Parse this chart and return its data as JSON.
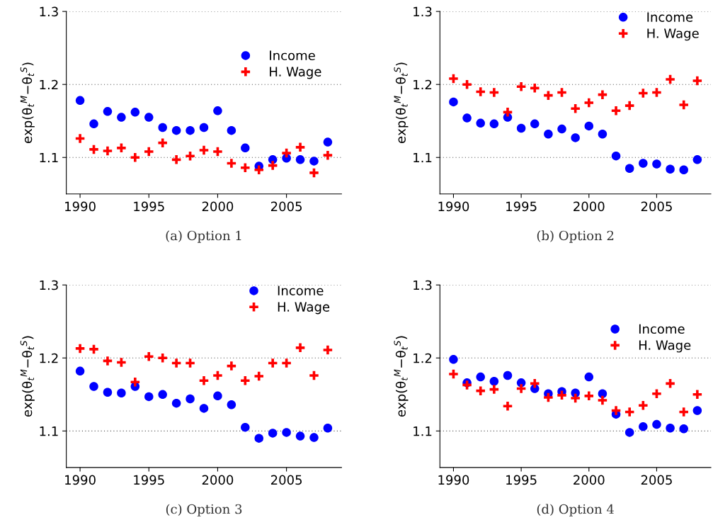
{
  "chart_data": [
    {
      "type": "scatter",
      "ylabel": "exp(θ$_{t}$$^{M}$−θ$_{t}$$^{S}$)",
      "annotations": [
        "(a) Option 1"
      ],
      "x": [
        1990,
        1991,
        1992,
        1993,
        1994,
        1995,
        1996,
        1997,
        1998,
        1999,
        2000,
        2001,
        2002,
        2003,
        2004,
        2005,
        2006,
        2007,
        2008
      ],
      "xlim": [
        1989,
        2009
      ],
      "xticks": [
        1990,
        1995,
        2000,
        2005
      ],
      "ylim": [
        1.05,
        1.3
      ],
      "yticks": [
        1.1,
        1.2,
        1.3
      ],
      "grid": "y",
      "legend": "right",
      "series": [
        {
          "name": "Income",
          "color": "#0000ff",
          "marker": "circle",
          "values": [
            1.178,
            1.146,
            1.163,
            1.155,
            1.162,
            1.155,
            1.141,
            1.137,
            1.137,
            1.141,
            1.164,
            1.137,
            1.113,
            1.088,
            1.097,
            1.099,
            1.097,
            1.095,
            1.121
          ]
        },
        {
          "name": "H. Wage",
          "color": "#ff0000",
          "marker": "cross",
          "values": [
            1.126,
            1.111,
            1.109,
            1.113,
            1.1,
            1.108,
            1.12,
            1.097,
            1.102,
            1.11,
            1.108,
            1.092,
            1.086,
            1.083,
            1.089,
            1.106,
            1.114,
            1.079,
            1.103
          ]
        }
      ]
    },
    {
      "type": "scatter",
      "ylabel": "exp(θ$_{t}$$^{M}$−θ$_{t}$$^{S}$)",
      "annotations": [
        "(b) Option 2"
      ],
      "x": [
        1990,
        1991,
        1992,
        1993,
        1994,
        1995,
        1996,
        1997,
        1998,
        1999,
        2000,
        2001,
        2002,
        2003,
        2004,
        2005,
        2006,
        2007,
        2008
      ],
      "xlim": [
        1989,
        2009
      ],
      "xticks": [
        1990,
        1995,
        2000,
        2005
      ],
      "ylim": [
        1.05,
        1.3
      ],
      "yticks": [
        1.1,
        1.2,
        1.3
      ],
      "grid": "y",
      "legend": "top right",
      "series": [
        {
          "name": "Income",
          "color": "#0000ff",
          "marker": "circle",
          "values": [
            1.176,
            1.154,
            1.147,
            1.146,
            1.155,
            1.14,
            1.146,
            1.132,
            1.139,
            1.127,
            1.143,
            1.132,
            1.102,
            1.085,
            1.092,
            1.091,
            1.084,
            1.083,
            1.097
          ]
        },
        {
          "name": "H. Wage",
          "color": "#ff0000",
          "marker": "cross",
          "values": [
            1.208,
            1.2,
            1.19,
            1.189,
            1.162,
            1.197,
            1.195,
            1.185,
            1.189,
            1.167,
            1.175,
            1.186,
            1.164,
            1.171,
            1.188,
            1.189,
            1.207,
            1.172,
            1.205
          ]
        }
      ]
    },
    {
      "type": "scatter",
      "ylabel": "exp(θ$_{t}$$^{M}$−θ$_{t}$$^{S}$)",
      "annotations": [
        "(c) Option 3"
      ],
      "x": [
        1990,
        1991,
        1992,
        1993,
        1994,
        1995,
        1996,
        1997,
        1998,
        1999,
        2000,
        2001,
        2002,
        2003,
        2004,
        2005,
        2006,
        2007,
        2008
      ],
      "xlim": [
        1989,
        2009
      ],
      "xticks": [
        1990,
        1995,
        2000,
        2005
      ],
      "ylim": [
        1.05,
        1.3
      ],
      "yticks": [
        1.1,
        1.2,
        1.3
      ],
      "grid": "y",
      "legend": "top right",
      "series": [
        {
          "name": "Income",
          "color": "#0000ff",
          "marker": "circle",
          "values": [
            1.182,
            1.161,
            1.153,
            1.152,
            1.161,
            1.147,
            1.15,
            1.138,
            1.144,
            1.131,
            1.148,
            1.136,
            1.105,
            1.09,
            1.097,
            1.098,
            1.093,
            1.091,
            1.104
          ]
        },
        {
          "name": "H. Wage",
          "color": "#ff0000",
          "marker": "cross",
          "values": [
            1.213,
            1.212,
            1.196,
            1.194,
            1.167,
            1.202,
            1.2,
            1.193,
            1.193,
            1.169,
            1.176,
            1.189,
            1.169,
            1.175,
            1.193,
            1.193,
            1.214,
            1.176,
            1.211
          ]
        }
      ]
    },
    {
      "type": "scatter",
      "ylabel": "exp(θ$_{t}$$^{M}$−θ$_{t}$$^{S}$)",
      "annotations": [
        "(d) Option 4"
      ],
      "x": [
        1990,
        1991,
        1992,
        1993,
        1994,
        1995,
        1996,
        1997,
        1998,
        1999,
        2000,
        2001,
        2002,
        2003,
        2004,
        2005,
        2006,
        2007,
        2008
      ],
      "xlim": [
        1989,
        2009
      ],
      "xticks": [
        1990,
        1995,
        2000,
        2005
      ],
      "ylim": [
        1.05,
        1.3
      ],
      "yticks": [
        1.1,
        1.2,
        1.3
      ],
      "grid": "y",
      "legend": "right",
      "series": [
        {
          "name": "Income",
          "color": "#0000ff",
          "marker": "circle",
          "values": [
            1.198,
            1.166,
            1.174,
            1.168,
            1.176,
            1.166,
            1.158,
            1.151,
            1.154,
            1.152,
            1.174,
            1.151,
            1.123,
            1.098,
            1.106,
            1.109,
            1.104,
            1.103,
            1.128
          ]
        },
        {
          "name": "H. Wage",
          "color": "#ff0000",
          "marker": "cross",
          "values": [
            1.178,
            1.163,
            1.155,
            1.157,
            1.134,
            1.158,
            1.165,
            1.146,
            1.149,
            1.145,
            1.148,
            1.142,
            1.128,
            1.126,
            1.135,
            1.151,
            1.165,
            1.126,
            1.15
          ]
        }
      ]
    }
  ]
}
